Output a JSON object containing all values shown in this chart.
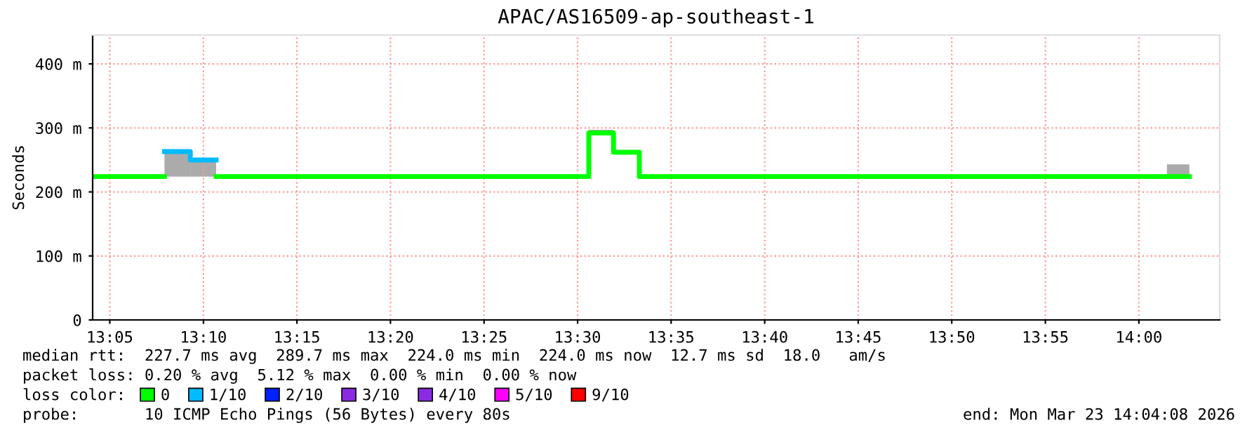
{
  "chart_data": {
    "type": "step",
    "title": "APAC/AS16509-ap-southeast-1",
    "ylabel": "Seconds",
    "xlim": [
      13.068,
      14.072
    ],
    "ylim": [
      0,
      445
    ],
    "xticks": [
      {
        "value": 13.0833,
        "label": "13:05"
      },
      {
        "value": 13.1667,
        "label": "13:10"
      },
      {
        "value": 13.25,
        "label": "13:15"
      },
      {
        "value": 13.3333,
        "label": "13:20"
      },
      {
        "value": 13.4167,
        "label": "13:25"
      },
      {
        "value": 13.5,
        "label": "13:30"
      },
      {
        "value": 13.5833,
        "label": "13:35"
      },
      {
        "value": 13.6667,
        "label": "13:40"
      },
      {
        "value": 13.75,
        "label": "13:45"
      },
      {
        "value": 13.8333,
        "label": "13:50"
      },
      {
        "value": 13.9167,
        "label": "13:55"
      },
      {
        "value": 14.0,
        "label": "14:00"
      }
    ],
    "yticks": [
      0,
      {
        "value": 100,
        "label": "100 m"
      },
      {
        "value": 200,
        "label": "200 m"
      },
      {
        "value": 300,
        "label": "300 m"
      },
      {
        "value": 400,
        "label": "400 m"
      }
    ],
    "grid": true,
    "legend": "bottom",
    "legend_title": "loss color:",
    "series": [
      {
        "name": "0",
        "color": "#00ff00",
        "x": [
          13.068,
          13.132,
          13.178,
          13.51,
          13.532,
          13.555,
          13.723,
          13.745,
          14.025,
          14.045
        ],
        "values": [
          224,
          null,
          224,
          292,
          262,
          224,
          224,
          224,
          224,
          224
        ],
        "lower": [
          null,
          null,
          null,
          292,
          262,
          null,
          224,
          null,
          224,
          224
        ],
        "upper": [
          null,
          null,
          null,
          297,
          265,
          null,
          227,
          null,
          243,
          243
        ]
      },
      {
        "name": "1/10",
        "color": "#00bbff",
        "x": [
          13.132,
          13.155,
          13.178
        ],
        "values": [
          263,
          250,
          250
        ],
        "lower": [
          224,
          224,
          224
        ],
        "upper": [
          265,
          252,
          252
        ]
      },
      {
        "name": "2/10",
        "color": "#0022ff"
      },
      {
        "name": "3/10",
        "color": "#8a2be2"
      },
      {
        "name": "4/10",
        "color": "#8a2be2"
      },
      {
        "name": "5/10",
        "color": "#ff00ff"
      },
      {
        "name": "9/10",
        "color": "#ff0000"
      }
    ],
    "annotations": [
      "median rtt:  227.7 ms avg  289.7 ms max  224.0 ms min  224.0 ms now  12.7 ms sd  18.0   am/s",
      "packet loss: 0.20 % avg  5.12 % max  0.00 % min  0.00 % now",
      "probe:       10 ICMP Echo Pings (56 Bytes) every 80s",
      "end: Mon Mar 23 14:04:08 2026"
    ]
  }
}
